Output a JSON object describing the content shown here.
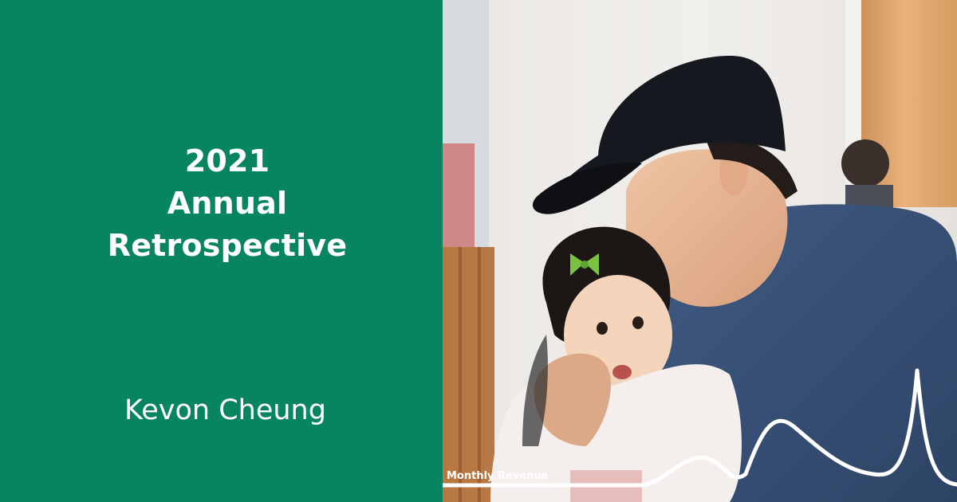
{
  "title_lines": [
    "2021",
    "Annual",
    "Retrospective"
  ],
  "author": "Kevon Cheung",
  "chart_label": "Monthly Revenue",
  "colors": {
    "panel_green": "#078561",
    "text": "#ffffff",
    "chart_line": "#ffffff"
  },
  "photo": {
    "icon": "photo-icon"
  }
}
